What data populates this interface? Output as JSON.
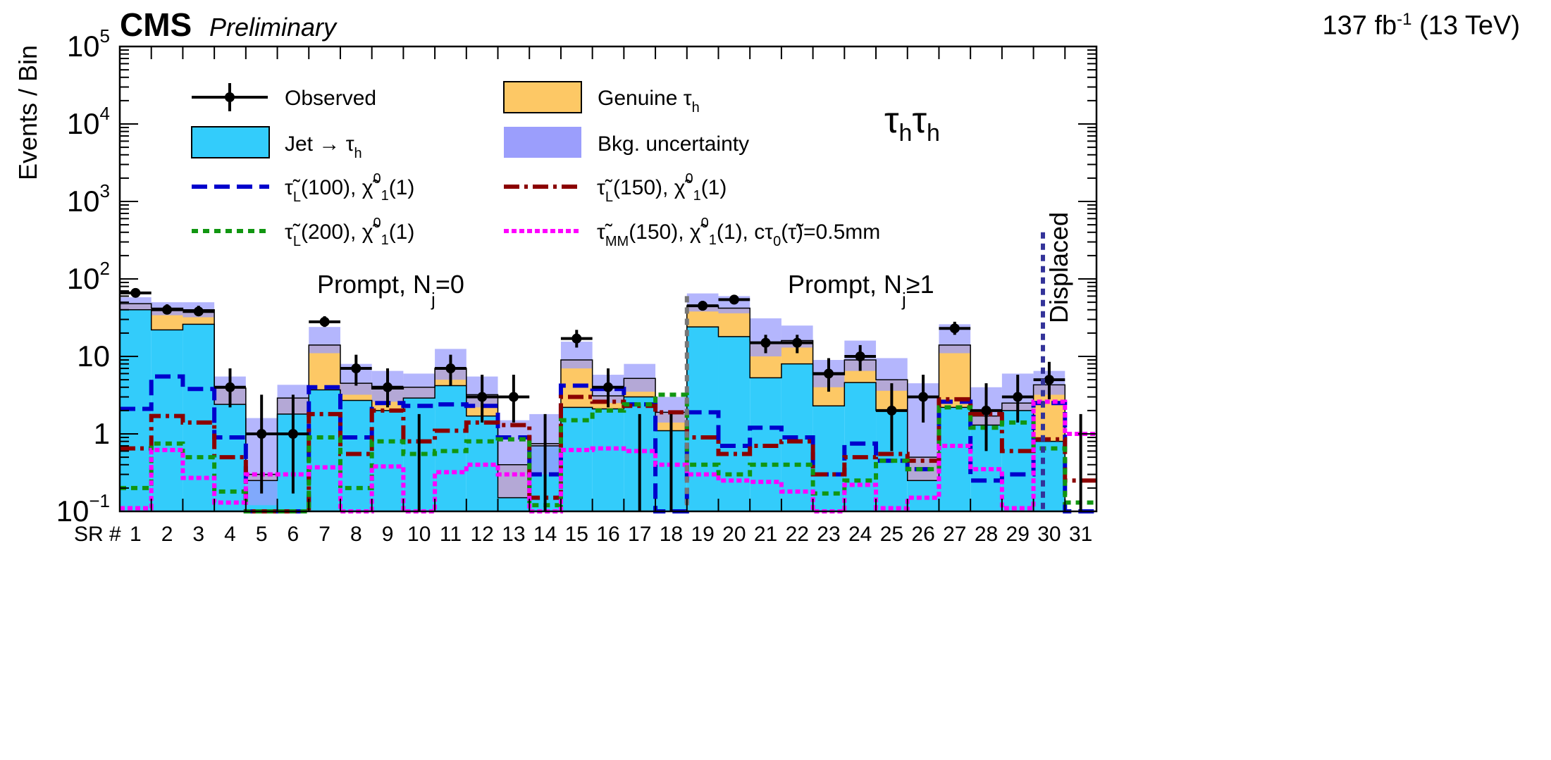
{
  "header": {
    "experiment": "CMS",
    "status": "Preliminary",
    "lumi": "137 fb",
    "lumi_exp": "-1",
    "energy": "(13 TeV)"
  },
  "chart_data": {
    "type": "bar",
    "title": "",
    "xlabel": "SR #",
    "ylabel": "Events / Bin",
    "yscale": "log",
    "ylim": [
      0.1,
      100000
    ],
    "ytick_labels": [
      {
        "value": 0.1,
        "base": "10",
        "exp": "−1"
      },
      {
        "value": 1,
        "base": "1",
        "exp": ""
      },
      {
        "value": 10,
        "base": "10",
        "exp": ""
      },
      {
        "value": 100,
        "base": "10",
        "exp": "2"
      },
      {
        "value": 1000,
        "base": "10",
        "exp": "3"
      },
      {
        "value": 10000,
        "base": "10",
        "exp": "4"
      },
      {
        "value": 100000,
        "base": "10",
        "exp": "5"
      }
    ],
    "categories": [
      "1",
      "2",
      "3",
      "4",
      "5",
      "6",
      "7",
      "8",
      "9",
      "10",
      "11",
      "12",
      "13",
      "14",
      "15",
      "16",
      "17",
      "18",
      "19",
      "20",
      "21",
      "22",
      "23",
      "24",
      "25",
      "26",
      "27",
      "28",
      "29",
      "30",
      "31"
    ],
    "channel_label": {
      "main": "τ",
      "sub": "h"
    },
    "region_labels": [
      {
        "text": "Prompt, N",
        "sub": "j",
        "tail": "=0"
      },
      {
        "text": "Prompt, N",
        "sub": "j",
        "tail": "≥1"
      },
      {
        "text": "Displaced"
      }
    ],
    "legend_position": "top",
    "legend": [
      {
        "key": "observed",
        "label": "Observed"
      },
      {
        "key": "genuine",
        "label": "Genuine τ",
        "sub": "h"
      },
      {
        "key": "jet",
        "label": "Jet → τ",
        "sub": "h"
      },
      {
        "key": "unc",
        "label": "Bkg. uncertainty"
      },
      {
        "key": "sig100",
        "label": "τ̃",
        "sub": "L",
        "rest": "(100), χ̃",
        "sup2": "0",
        "sub2": "1",
        "rest2": "(1)"
      },
      {
        "key": "sig150",
        "label": "τ̃",
        "sub": "L",
        "rest": "(150), χ̃",
        "sup2": "0",
        "sub2": "1",
        "rest2": "(1)"
      },
      {
        "key": "sig200",
        "label": "τ̃",
        "sub": "L",
        "rest": "(200), χ̃",
        "sup2": "0",
        "sub2": "1",
        "rest2": "(1)"
      },
      {
        "key": "sigMM",
        "label": "τ̃",
        "sub": "MM",
        "rest": "(150), χ̃",
        "sup2": "0",
        "sub2": "1",
        "rest2": "(1), cτ",
        "sub3": "0",
        "rest3": "(τ̃)=0.5mm"
      }
    ],
    "colors": {
      "jet": "#33ccfb",
      "genuine": "#fdc865",
      "unc": "#9b9efc",
      "sig100": "#0000cc",
      "sig150": "#8b0000",
      "sig200": "#119611",
      "sigMM": "#ff00ff",
      "divider_prompt": "#777777",
      "divider_displaced": "#333399"
    },
    "series": [
      {
        "name": "Jet → τh",
        "values": [
          40,
          22,
          26,
          2.4,
          0.25,
          1.8,
          3.7,
          2.7,
          2.0,
          2.9,
          4.2,
          1.7,
          0.15,
          0.7,
          2.2,
          2.1,
          3.0,
          1.1,
          24,
          18,
          5.3,
          8.0,
          2.3,
          4.6,
          2.0,
          0.25,
          2.2,
          1.3,
          2.0,
          0.8,
          0.1
        ]
      },
      {
        "name": "Genuine τh",
        "values": [
          48,
          42,
          40,
          3.9,
          0.3,
          2.9,
          14,
          4.5,
          3.8,
          4.0,
          7.0,
          3.2,
          0.4,
          0.75,
          9.0,
          3.1,
          5.2,
          1.9,
          45,
          42,
          15,
          16,
          5.8,
          9.0,
          5.0,
          0.5,
          14,
          1.7,
          2.5,
          4.3,
          0.1
        ]
      },
      {
        "name": "Bkg. uncertainty",
        "values": [
          [
            40,
            58
          ],
          [
            34,
            50
          ],
          [
            32,
            50
          ],
          [
            2.4,
            5.5
          ],
          [
            0.12,
            1.6
          ],
          [
            1.8,
            4.3
          ],
          [
            11,
            24
          ],
          [
            3.2,
            8.0
          ],
          [
            2.6,
            6.5
          ],
          [
            2.9,
            6.0
          ],
          [
            5.0,
            12.5
          ],
          [
            2.2,
            5.5
          ],
          [
            0.15,
            1.5
          ],
          [
            0.3,
            1.8
          ],
          [
            7.0,
            15.5
          ],
          [
            2.5,
            5.8
          ],
          [
            3.5,
            8.0
          ],
          [
            1.4,
            3.0
          ],
          [
            38,
            65
          ],
          [
            36,
            60
          ],
          [
            10,
            31
          ],
          [
            13,
            25
          ],
          [
            4.0,
            9.0
          ],
          [
            6.5,
            16.0
          ],
          [
            3.6,
            9.5
          ],
          [
            0.25,
            4.5
          ],
          [
            11,
            26
          ],
          [
            1.3,
            4.0
          ],
          [
            2.0,
            6.0
          ],
          [
            3.2,
            6.5
          ],
          [
            0.1,
            0.1
          ]
        ]
      },
      {
        "name": "Observed",
        "values": [
          66,
          40,
          38,
          4,
          1,
          1,
          28,
          7,
          4,
          0,
          7,
          3,
          3,
          0,
          17,
          4,
          0,
          0,
          45,
          54,
          15,
          15,
          6,
          10,
          2,
          3,
          23,
          2,
          3,
          5,
          0
        ]
      },
      {
        "name": "τ̃L(100), χ̃1(1)",
        "values": [
          2.1,
          5.5,
          3.8,
          0.9,
          0.1,
          0.1,
          4.0,
          0.9,
          2.5,
          2.3,
          2.4,
          2.3,
          0.9,
          0.3,
          4.2,
          3.8,
          2.4,
          0.1,
          1.9,
          0.7,
          1.2,
          0.9,
          0.3,
          0.75,
          0.45,
          0.35,
          2.6,
          0.25,
          0.3,
          2.5,
          0.1
        ]
      },
      {
        "name": "τ̃L(150), χ̃1(1)",
        "values": [
          0.65,
          1.7,
          1.4,
          0.5,
          0.1,
          0.1,
          1.8,
          0.55,
          2.0,
          0.8,
          1.1,
          1.4,
          1.3,
          0.15,
          3.0,
          2.6,
          2.3,
          1.9,
          0.9,
          0.55,
          0.7,
          0.8,
          0.3,
          0.5,
          0.55,
          0.45,
          2.8,
          1.8,
          0.6,
          0.85,
          0.25
        ]
      },
      {
        "name": "τ̃L(200), χ̃1(1)",
        "values": [
          0.2,
          0.75,
          0.5,
          0.18,
          0.1,
          0.1,
          0.9,
          0.2,
          0.8,
          0.55,
          0.6,
          0.8,
          0.85,
          0.12,
          1.5,
          2.0,
          2.4,
          3.2,
          0.4,
          0.3,
          0.4,
          0.4,
          0.17,
          0.25,
          0.45,
          0.35,
          2.2,
          1.2,
          1.4,
          0.65,
          0.13
        ]
      },
      {
        "name": "τ̃MM(150), χ̃1(1), cτ0(τ̃)=0.5mm",
        "values": [
          0.11,
          0.62,
          0.27,
          0.13,
          0.3,
          0.3,
          0.37,
          0.1,
          0.38,
          0.1,
          0.32,
          0.4,
          0.3,
          0.1,
          0.62,
          0.65,
          0.6,
          0.4,
          0.3,
          0.25,
          0.24,
          0.18,
          0.1,
          0.22,
          0.11,
          0.15,
          0.7,
          0.35,
          0.11,
          2.6,
          1.0
        ]
      }
    ],
    "observed_errors": [
      [
        58,
        76
      ],
      [
        35,
        47
      ],
      [
        33,
        45
      ],
      [
        2.2,
        7
      ],
      [
        0.17,
        3.2
      ],
      [
        0.17,
        3.2
      ],
      [
        24,
        33
      ],
      [
        4.2,
        10.5
      ],
      [
        2.2,
        7
      ],
      [
        0.1,
        1.8
      ],
      [
        4.2,
        10.5
      ],
      [
        1.4,
        5.8
      ],
      [
        1.4,
        5.8
      ],
      [
        0.1,
        1.8
      ],
      [
        13,
        22
      ],
      [
        2.2,
        7
      ],
      [
        0.1,
        1.8
      ],
      [
        0.1,
        1.8
      ],
      [
        39,
        52
      ],
      [
        47,
        61
      ],
      [
        11,
        19
      ],
      [
        11,
        19
      ],
      [
        3.5,
        9.5
      ],
      [
        6.5,
        14
      ],
      [
        0.6,
        4.5
      ],
      [
        1.4,
        5.8
      ],
      [
        19,
        28
      ],
      [
        0.6,
        4.5
      ],
      [
        1.4,
        5.8
      ],
      [
        2.8,
        8.5
      ],
      [
        0.1,
        1.8
      ]
    ]
  }
}
